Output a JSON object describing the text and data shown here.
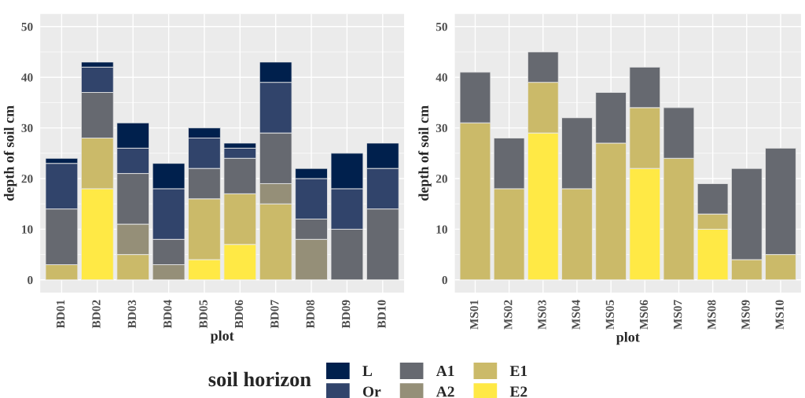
{
  "chart_data": [
    {
      "type": "bar",
      "stacked": true,
      "xlabel": "plot",
      "ylabel": "depth of soil cm",
      "legend_title": "soil horizon",
      "legend": "bottom",
      "grid": true,
      "categories": [
        "BD01",
        "BD02",
        "BD03",
        "BD04",
        "BD05",
        "BD06",
        "BD07",
        "BD08",
        "BD09",
        "BD10"
      ],
      "ylim": [
        -2.5,
        52.5
      ],
      "yticks": [
        0,
        10,
        20,
        30,
        40,
        50
      ],
      "series": [
        {
          "name": "E2",
          "color": "#ffe945",
          "values": [
            null,
            18,
            null,
            null,
            4,
            7,
            null,
            null,
            null,
            null
          ]
        },
        {
          "name": "E1",
          "color": "#cbba69",
          "values": [
            3,
            10,
            5,
            null,
            12,
            10,
            15,
            null,
            null,
            null
          ]
        },
        {
          "name": "A2",
          "color": "#958f78",
          "values": [
            null,
            null,
            6,
            3,
            null,
            null,
            4,
            8,
            null,
            null
          ]
        },
        {
          "name": "A1",
          "color": "#666970",
          "values": [
            11,
            9,
            10,
            5,
            6,
            7,
            10,
            4,
            10,
            14
          ]
        },
        {
          "name": "Or",
          "color": "#31446b",
          "values": [
            9,
            5,
            5,
            10,
            6,
            2,
            10,
            8,
            8,
            8
          ]
        },
        {
          "name": "L",
          "color": "#00204d",
          "values": [
            1,
            1,
            5,
            5,
            2,
            1,
            4,
            2,
            7,
            5
          ]
        }
      ]
    },
    {
      "type": "bar",
      "stacked": true,
      "xlabel": "plot",
      "ylabel": "depth of soil cm",
      "grid": true,
      "categories": [
        "MS01",
        "MS02",
        "MS03",
        "MS04",
        "MS05",
        "MS06",
        "MS07",
        "MS08",
        "MS09",
        "MS10"
      ],
      "ylim": [
        -2.5,
        52.5
      ],
      "yticks": [
        0,
        10,
        20,
        30,
        40,
        50
      ],
      "series": [
        {
          "name": "E2",
          "color": "#ffe945",
          "values": [
            null,
            null,
            29,
            null,
            null,
            22,
            null,
            10,
            null,
            null
          ]
        },
        {
          "name": "E1",
          "color": "#cbba69",
          "values": [
            31,
            18,
            10,
            18,
            27,
            12,
            24,
            3,
            4,
            5
          ]
        },
        {
          "name": "A1",
          "color": "#666970",
          "values": [
            10,
            10,
            6,
            14,
            10,
            8,
            10,
            6,
            18,
            21
          ]
        }
      ]
    }
  ]
}
